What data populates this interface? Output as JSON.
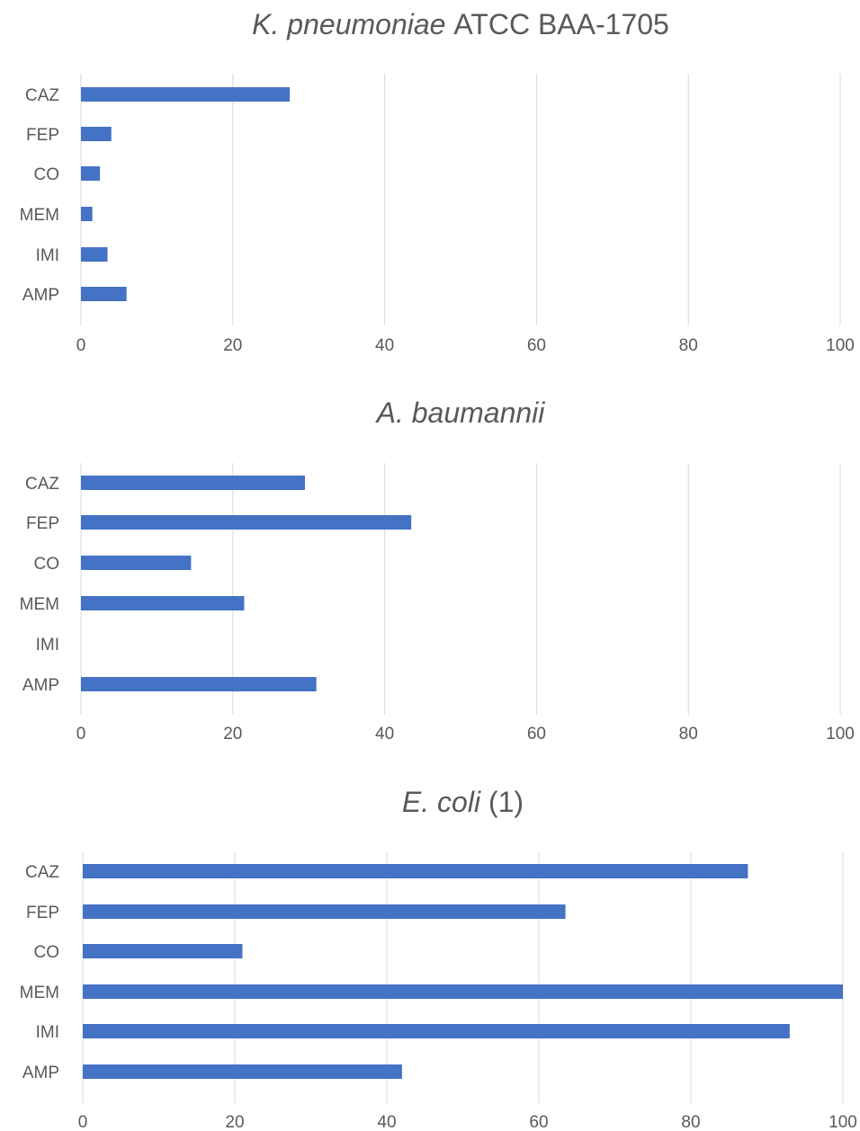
{
  "chart_data": [
    {
      "type": "bar",
      "orientation": "horizontal",
      "title_italic": "K. pneumoniae",
      "title_rest": " ATCC BAA-1705",
      "categories": [
        "CAZ",
        "FEP",
        "CO",
        "MEM",
        "IMI",
        "AMP"
      ],
      "values": [
        27.5,
        4,
        2.5,
        1.5,
        3.5,
        6
      ],
      "xlim": [
        0,
        100
      ],
      "xticks": [
        "0",
        "20",
        "40",
        "60",
        "80",
        "100"
      ],
      "grid": true,
      "legend": "none",
      "color": "#4472c4"
    },
    {
      "type": "bar",
      "orientation": "horizontal",
      "title_italic": "A. baumannii",
      "title_rest": "",
      "categories": [
        "CAZ",
        "FEP",
        "CO",
        "MEM",
        "IMI",
        "AMP"
      ],
      "values": [
        29.5,
        43.5,
        14.5,
        21.5,
        0,
        31
      ],
      "xlim": [
        0,
        100
      ],
      "xticks": [
        "0",
        "20",
        "40",
        "60",
        "80",
        "100"
      ],
      "grid": true,
      "legend": "none",
      "color": "#4472c4"
    },
    {
      "type": "bar",
      "orientation": "horizontal",
      "title_italic": "E. coli",
      "title_rest": " (1)",
      "categories": [
        "CAZ",
        "FEP",
        "CO",
        "MEM",
        "IMI",
        "AMP"
      ],
      "values": [
        87.5,
        63.5,
        21,
        100,
        93,
        42
      ],
      "xlim": [
        0,
        100
      ],
      "xticks": [
        "0",
        "20",
        "40",
        "60",
        "80",
        "100"
      ],
      "grid": true,
      "legend": "none",
      "color": "#4472c4"
    }
  ]
}
